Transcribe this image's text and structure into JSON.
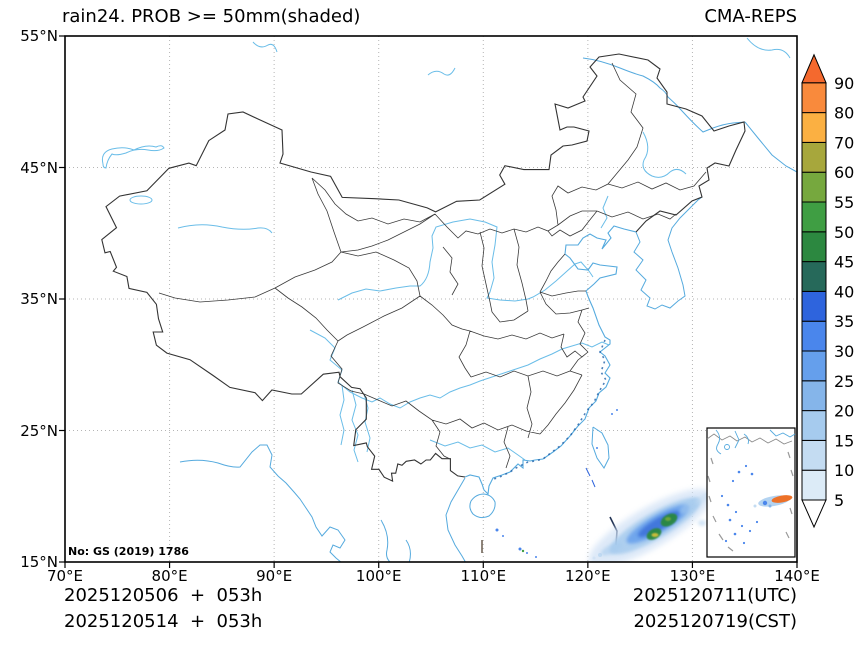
{
  "title": "rain24. PROB >= 50mm(shaded)",
  "brand": "CMA-REPS",
  "stamp": "No: GS (2019) 1786",
  "footer": {
    "init_line_1": "2025120506  +  053h",
    "init_line_2": "2025120514  +  053h",
    "valid_line_1": "2025120711(UTC)",
    "valid_line_2": "2025120719(CST)"
  },
  "axes": {
    "lon_ticks": [
      "70°E",
      "80°E",
      "90°E",
      "100°E",
      "110°E",
      "120°E",
      "130°E",
      "140°E"
    ],
    "lat_ticks": [
      "55°N",
      "45°N",
      "35°N",
      "25°N",
      "15°N"
    ],
    "lon_range": [
      70,
      140
    ],
    "lat_range": [
      15,
      55
    ]
  },
  "colorbar": {
    "levels": [
      5,
      10,
      15,
      20,
      25,
      30,
      35,
      40,
      45,
      50,
      55,
      60,
      70,
      80,
      90
    ],
    "colors": [
      "#ffffff",
      "#dcebf7",
      "#c4dcf2",
      "#a6cbee",
      "#85b5ea",
      "#659fec",
      "#4a86ec",
      "#2e64dd",
      "#26695a",
      "#2c8840",
      "#3f9e43",
      "#76a83e",
      "#a7a73c",
      "#fbb042",
      "#f98a3c",
      "#f4692e"
    ],
    "extend": "both"
  },
  "map_colors": {
    "coastline": "#55aade",
    "rivers": "#6abde8",
    "provinces": "#3a3a3a",
    "grid": "#b5b5b5",
    "inset_orange": "#ed7128"
  },
  "chart_data": {
    "type": "heatmap",
    "title": "rain24. PROB >= 50mm(shaded)",
    "source_model": "CMA-REPS",
    "x": {
      "label": "longitude",
      "ticks": [
        "70°E",
        "80°E",
        "90°E",
        "100°E",
        "110°E",
        "120°E",
        "130°E",
        "140°E"
      ],
      "range": [
        70,
        140
      ]
    },
    "y": {
      "label": "latitude",
      "ticks": [
        "55°N",
        "45°N",
        "35°N",
        "25°N",
        "15°N"
      ],
      "range": [
        15,
        55
      ]
    },
    "colorbar": {
      "levels_percent": [
        5,
        10,
        15,
        20,
        25,
        30,
        35,
        40,
        45,
        50,
        55,
        60,
        70,
        80,
        90
      ],
      "orientation": "vertical",
      "position": "right",
      "extend": "both"
    },
    "shaded_features": [
      {
        "name": "probability band over Philippine Sea east of Luzon",
        "lon_range": [
          120.5,
          128.5
        ],
        "lat_range": [
          15,
          19.5
        ],
        "orientation": "SW-NE",
        "core_values_percent": [
          45,
          50,
          55,
          60
        ],
        "peak_band": "60-70"
      },
      {
        "name": "South China Sea inset maximum",
        "value_band": "80-90",
        "color": "orange"
      }
    ],
    "init_runs": [
      "2025120506",
      "2025120514"
    ],
    "forecast_hour": "053h",
    "valid_time_utc": "2025120711(UTC)",
    "valid_time_cst": "2025120719(CST)"
  }
}
